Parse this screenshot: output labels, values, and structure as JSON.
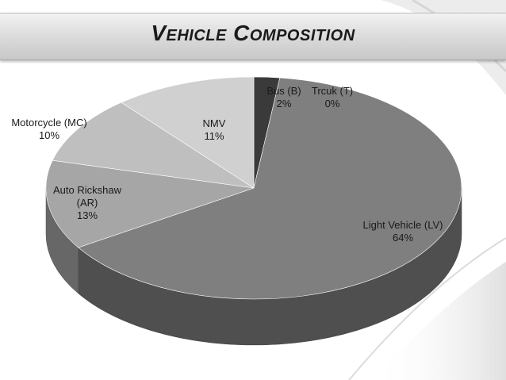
{
  "slide": {
    "title": "Vehicle Composition"
  },
  "chart_data": {
    "type": "pie",
    "title": "",
    "slices": [
      {
        "label": "Bus (B)",
        "value": 2,
        "value_label": "2%",
        "color": "#3a3a3a"
      },
      {
        "label": "Trcuk (T)",
        "value": 0,
        "value_label": "0%",
        "color": "#2e2e2e"
      },
      {
        "label": "Light Vehicle (LV)",
        "value": 64,
        "value_label": "64%",
        "color": "#7f7f7f"
      },
      {
        "label": "Auto Rickshaw (AR)",
        "value": 13,
        "value_label": "13%",
        "color": "#a6a6a6"
      },
      {
        "label": "Motorcycle (MC)",
        "value": 10,
        "value_label": "10%",
        "color": "#bfbfbf"
      },
      {
        "label": "NMV",
        "value": 11,
        "value_label": "11%",
        "color": "#d0d0d0"
      }
    ],
    "legend": "none",
    "style": "3d-tilted"
  }
}
